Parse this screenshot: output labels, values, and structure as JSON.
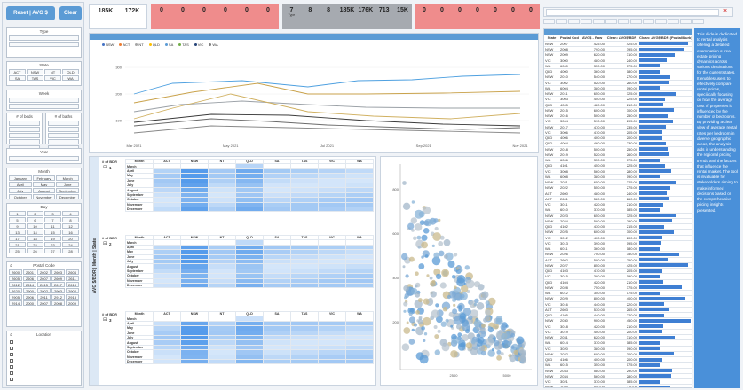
{
  "buttons": {
    "reset": "Reset | AVG $",
    "clear": "Clear"
  },
  "slicers": {
    "type": {
      "title": "Type",
      "items": [
        "",
        ""
      ]
    },
    "state": {
      "title": "State",
      "items": [
        "ACT",
        "NSW",
        "NT",
        "QLD",
        "SA",
        "TAS",
        "VIC",
        "WA"
      ]
    },
    "weeks": {
      "title": "Week",
      "items": [
        "",
        ""
      ]
    },
    "beds": {
      "title": "# of beds"
    },
    "baths": {
      "title": "# of baths"
    },
    "bed_items": [
      "",
      "",
      "",
      "",
      ""
    ],
    "bath_items": [
      "",
      "",
      "",
      "",
      ""
    ],
    "year": {
      "title": "Year"
    },
    "month": {
      "title": "Month",
      "items": [
        "January",
        "February",
        "March",
        "April",
        "May",
        "June",
        "July",
        "August",
        "September",
        "October",
        "November",
        "December"
      ]
    },
    "day": {
      "title": "Day",
      "items": [
        "1",
        "2",
        "3",
        "4",
        "5",
        "6",
        "7",
        "8",
        "9",
        "10",
        "11",
        "12",
        "13",
        "14",
        "15",
        "16",
        "17",
        "18",
        "19",
        "20",
        "21",
        "22",
        "23",
        "24",
        "25",
        "26",
        "27",
        "28",
        "29",
        "30",
        "31"
      ]
    },
    "postal": {
      "title": "Postal Code",
      "items": [
        "2600",
        "2601",
        "2602",
        "2603",
        "2604",
        "2605",
        "2606",
        "2607",
        "2609",
        "2611",
        "2612",
        "2614",
        "2615",
        "2617",
        "2618",
        "2620",
        "2900",
        "2902",
        "2903",
        "2904",
        "2905",
        "2906",
        "2911",
        "2912",
        "2913",
        "2914",
        "2000",
        "2007",
        "2008",
        "2009"
      ]
    },
    "location": {
      "title": "Location",
      "items": [
        "",
        "",
        "",
        "",
        "",
        "",
        ""
      ]
    }
  },
  "kpis": [
    {
      "value": "185K",
      "label": ""
    },
    {
      "value": "172K",
      "label": ""
    }
  ],
  "kpi_red": [
    {
      "value": "0",
      "label": ""
    },
    {
      "value": "0",
      "label": ""
    },
    {
      "value": "0",
      "label": ""
    },
    {
      "value": "0",
      "label": ""
    },
    {
      "value": "0",
      "label": ""
    },
    {
      "value": "0",
      "label": ""
    }
  ],
  "kpi_grey": [
    {
      "value": "7",
      "label": "Type"
    },
    {
      "value": "8",
      "label": ""
    },
    {
      "value": "8",
      "label": ""
    },
    {
      "value": "185K",
      "label": ""
    },
    {
      "value": "176K",
      "label": ""
    },
    {
      "value": "713",
      "label": ""
    },
    {
      "value": "15K",
      "label": ""
    }
  ],
  "kpi_red2": [
    {
      "value": "0",
      "label": ""
    },
    {
      "value": "0",
      "label": ""
    },
    {
      "value": "0",
      "label": ""
    },
    {
      "value": "0",
      "label": ""
    },
    {
      "value": "0",
      "label": ""
    },
    {
      "value": "0",
      "label": ""
    },
    {
      "value": "0",
      "label": ""
    }
  ],
  "search": {
    "placeholder": ""
  },
  "line_chart": {
    "title": "",
    "legend": [
      "NSW",
      "ACT",
      "NT",
      "QLD",
      "SA",
      "TAS",
      "VIC",
      "WA"
    ],
    "ylabel": "",
    "y_ticks": [
      "300",
      "200",
      "100"
    ],
    "x_ticks": [
      "Mar 2021",
      "May 2021",
      "Jul 2021",
      "Sep 2021",
      "Nov 2021"
    ]
  },
  "matrix": {
    "side_label": "AVG $/BDR | Month | State",
    "columns": [
      "Month",
      "ACT",
      "NSW",
      "NT",
      "QLD",
      "SA",
      "TAS",
      "VIC",
      "WA"
    ],
    "sections": [
      {
        "beds_label": "# of BDR",
        "beds": "1",
        "months": [
          "March",
          "April",
          "May",
          "June",
          "July",
          "August",
          "September",
          "October",
          "November",
          "December"
        ]
      },
      {
        "beds_label": "# of BDR",
        "beds": "2",
        "months": [
          "March",
          "April",
          "May",
          "June",
          "July",
          "August",
          "September",
          "October",
          "November",
          "December"
        ]
      },
      {
        "beds_label": "# of BDR",
        "beds": "3",
        "months": [
          "March",
          "April",
          "May",
          "June",
          "July",
          "August",
          "September",
          "October",
          "November",
          "December"
        ]
      }
    ]
  },
  "scatter": {
    "x_ticks": [
      "2500",
      "5000"
    ],
    "y_ticks": [
      "800",
      "600",
      "400",
      "200"
    ]
  },
  "right_table": {
    "title": "",
    "columns": [
      "State",
      "Postal Code",
      "AVG$ - Raw",
      "Clean: AVG$/BDR",
      "Clean: AVG$/BDR (Postal/Burb)"
    ],
    "rows": [
      [
        "NSW",
        "2007",
        "425.00",
        "425.00"
      ],
      [
        "NSW",
        "2008",
        "790.00",
        "395.00"
      ],
      [
        "NSW",
        "2009",
        "620.00",
        "310.00"
      ],
      [
        "VIC",
        "3000",
        "480.00",
        "240.00"
      ],
      [
        "WA",
        "6000",
        "350.00",
        "175.00"
      ],
      [
        "QLD",
        "4000",
        "360.00",
        "180.00"
      ],
      [
        "NSW",
        "2010",
        "540.00",
        "270.00"
      ],
      [
        "VIC",
        "3002",
        "520.00",
        "260.00"
      ],
      [
        "WA",
        "6004",
        "380.00",
        "190.00"
      ],
      [
        "NSW",
        "2011",
        "650.00",
        "325.00"
      ],
      [
        "VIC",
        "3003",
        "450.00",
        "225.00"
      ],
      [
        "QLD",
        "4005",
        "420.00",
        "210.00"
      ],
      [
        "NSW",
        "2015",
        "600.00",
        "300.00"
      ],
      [
        "NSW",
        "2016",
        "500.00",
        "250.00"
      ],
      [
        "VIC",
        "3004",
        "590.00",
        "295.00"
      ],
      [
        "NSW",
        "2017",
        "470.00",
        "235.00"
      ],
      [
        "VIC",
        "3006",
        "410.00",
        "205.00"
      ],
      [
        "QLD",
        "4006",
        "400.00",
        "200.00"
      ],
      [
        "QLD",
        "4064",
        "460.00",
        "230.00"
      ],
      [
        "NSW",
        "2018",
        "500.00",
        "250.00"
      ],
      [
        "NSW",
        "2019",
        "520.00",
        "260.00"
      ],
      [
        "WA",
        "6006",
        "350.00",
        "175.00"
      ],
      [
        "QLD",
        "4101",
        "450.00",
        "225.00"
      ],
      [
        "VIC",
        "3008",
        "560.00",
        "280.00"
      ],
      [
        "WA",
        "6008",
        "380.00",
        "190.00"
      ],
      [
        "NSW",
        "2021",
        "650.00",
        "325.00"
      ],
      [
        "NSW",
        "2022",
        "550.00",
        "275.00"
      ],
      [
        "ACT",
        "2600",
        "480.00",
        "240.00"
      ],
      [
        "ACT",
        "2601",
        "520.00",
        "260.00"
      ],
      [
        "VIC",
        "3011",
        "420.00",
        "210.00"
      ],
      [
        "WA",
        "6010",
        "370.00",
        "185.00"
      ],
      [
        "NSW",
        "2023",
        "650.00",
        "325.00"
      ],
      [
        "NSW",
        "2024",
        "580.00",
        "290.00"
      ],
      [
        "QLD",
        "4102",
        "430.00",
        "215.00"
      ],
      [
        "NSW",
        "2025",
        "600.00",
        "300.00"
      ],
      [
        "VIC",
        "3012",
        "400.00",
        "200.00"
      ],
      [
        "VIC",
        "3013",
        "390.00",
        "195.00"
      ],
      [
        "WA",
        "6011",
        "360.00",
        "180.00"
      ],
      [
        "NSW",
        "2026",
        "700.00",
        "350.00"
      ],
      [
        "ACT",
        "2602",
        "500.00",
        "250.00"
      ],
      [
        "NSW",
        "2027",
        "850.00",
        "425.00"
      ],
      [
        "QLD",
        "4103",
        "410.00",
        "205.00"
      ],
      [
        "VIC",
        "3015",
        "380.00",
        "190.00"
      ],
      [
        "QLD",
        "4104",
        "420.00",
        "210.00"
      ],
      [
        "NSW",
        "2028",
        "750.00",
        "375.00"
      ],
      [
        "WA",
        "6012",
        "350.00",
        "175.00"
      ],
      [
        "NSW",
        "2029",
        "800.00",
        "400.00"
      ],
      [
        "VIC",
        "3016",
        "440.00",
        "220.00"
      ],
      [
        "ACT",
        "2603",
        "530.00",
        "265.00"
      ],
      [
        "QLD",
        "4105",
        "440.00",
        "220.00"
      ],
      [
        "NSW",
        "2030",
        "900.00",
        "450.00"
      ],
      [
        "VIC",
        "3018",
        "420.00",
        "210.00"
      ],
      [
        "VIC",
        "3019",
        "400.00",
        "200.00"
      ],
      [
        "NSW",
        "2031",
        "620.00",
        "310.00"
      ],
      [
        "WA",
        "6014",
        "370.00",
        "185.00"
      ],
      [
        "VIC",
        "3020",
        "380.00",
        "190.00"
      ],
      [
        "NSW",
        "2032",
        "600.00",
        "300.00"
      ],
      [
        "QLD",
        "4106",
        "400.00",
        "200.00"
      ],
      [
        "WA",
        "6015",
        "350.00",
        "175.00"
      ],
      [
        "NSW",
        "2033",
        "580.00",
        "290.00"
      ],
      [
        "NSW",
        "2034",
        "560.00",
        "280.00"
      ],
      [
        "VIC",
        "3021",
        "370.00",
        "185.00"
      ],
      [
        "NSW",
        "2035",
        "540.00",
        "270.00"
      ],
      [
        "VIC",
        "3022",
        "360.00",
        "180.00"
      ],
      [
        "NSW",
        "2036",
        "520.00",
        "260.00"
      ]
    ]
  },
  "description": "This slide is dedicated to rental analysis offering a detailed examination of real estate pricing dynamics across various destinations for the current states. It enables users to effectively compare rental prices, specifically focusing on how the average cost of properties is influenced by the number of bedrooms. By providing a clear view of average rental rates per bedroom in diverse geographic areas, the analysis aids in understanding the regional pricing trends and the factors that influence the rental market. The tool is invaluable for stakeholders aiming to make informed decisions based on the comprehensive pricing insights presented."
}
